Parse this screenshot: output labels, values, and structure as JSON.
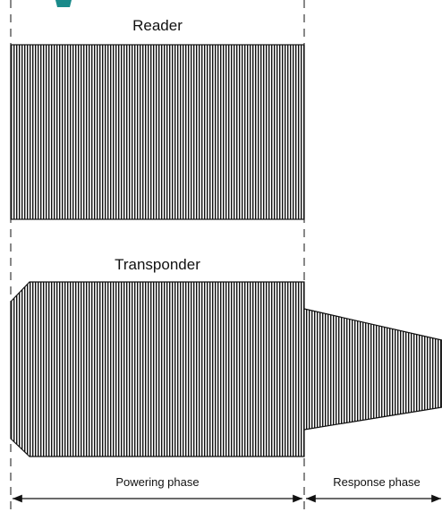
{
  "reader": {
    "label": "Reader"
  },
  "transponder": {
    "label": "Transponder"
  },
  "phases": [
    {
      "label": "Powering phase"
    },
    {
      "label": "Response phase"
    }
  ]
}
